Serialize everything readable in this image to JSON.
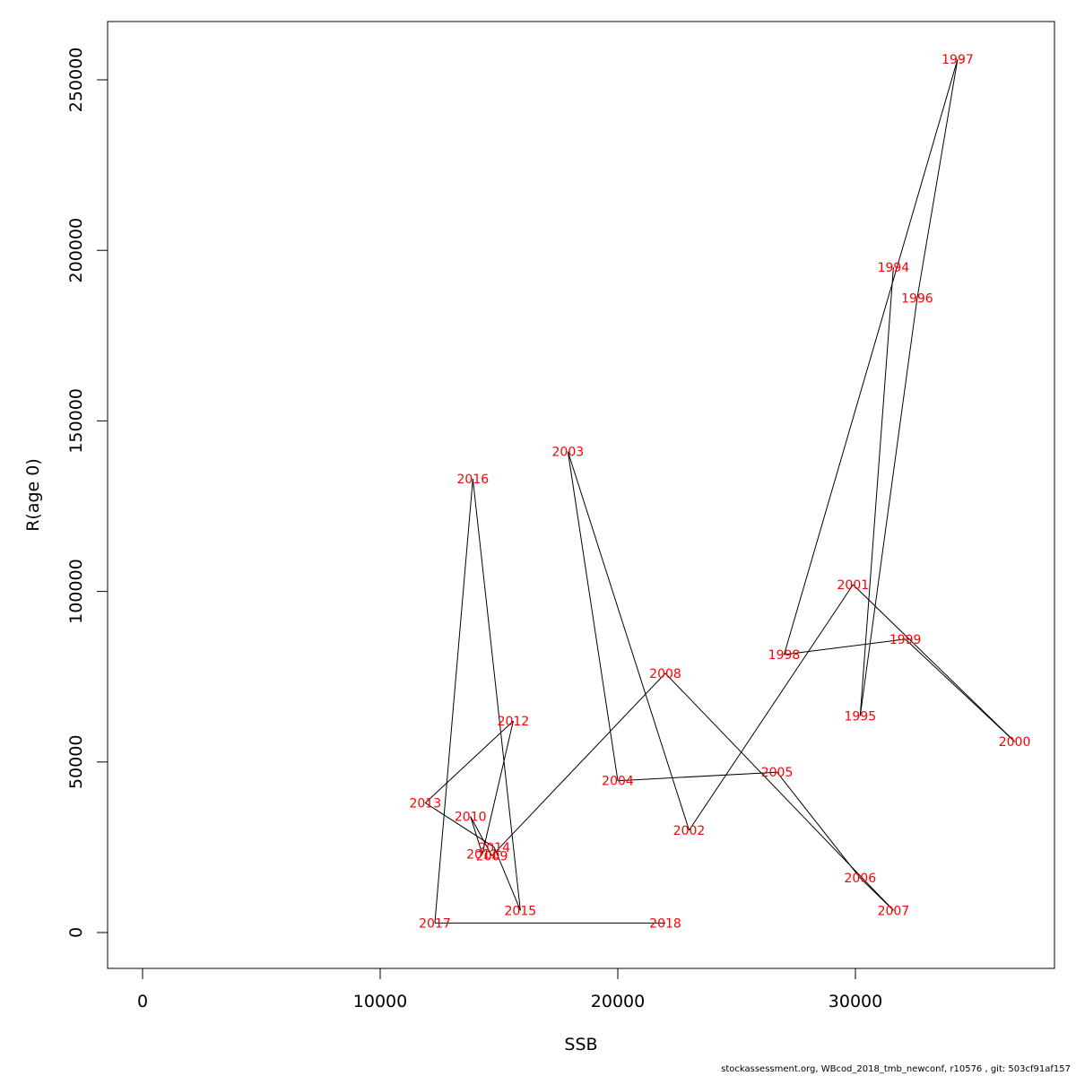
{
  "chart_data": {
    "type": "line",
    "title": "",
    "xlabel": "SSB",
    "ylabel": "R(age 0)",
    "xlim": [
      0,
      37000
    ],
    "ylim": [
      0,
      260000
    ],
    "xticks": [
      0,
      10000,
      20000,
      30000
    ],
    "yticks": [
      0,
      50000,
      100000,
      150000,
      200000,
      250000
    ],
    "grid": false,
    "line_color": "#000000",
    "label_color": "#ff0000",
    "points": [
      {
        "label": "1994",
        "x": 31600,
        "y": 195000
      },
      {
        "label": "1995",
        "x": 30200,
        "y": 63500
      },
      {
        "label": "1996",
        "x": 32600,
        "y": 186000
      },
      {
        "label": "1997",
        "x": 34300,
        "y": 256000
      },
      {
        "label": "1998",
        "x": 27000,
        "y": 81500
      },
      {
        "label": "1999",
        "x": 32100,
        "y": 86000
      },
      {
        "label": "2000",
        "x": 36700,
        "y": 56000
      },
      {
        "label": "2001",
        "x": 29900,
        "y": 102000
      },
      {
        "label": "2002",
        "x": 23000,
        "y": 30000
      },
      {
        "label": "2003",
        "x": 17900,
        "y": 141000
      },
      {
        "label": "2004",
        "x": 20000,
        "y": 44500
      },
      {
        "label": "2005",
        "x": 26700,
        "y": 47000
      },
      {
        "label": "2006",
        "x": 30200,
        "y": 16000
      },
      {
        "label": "2007",
        "x": 31600,
        "y": 6500
      },
      {
        "label": "2008",
        "x": 22000,
        "y": 76000
      },
      {
        "label": "2009",
        "x": 14700,
        "y": 22500
      },
      {
        "label": "2010",
        "x": 13800,
        "y": 34000
      },
      {
        "label": "2011",
        "x": 14300,
        "y": 23000
      },
      {
        "label": "2012",
        "x": 15600,
        "y": 62000
      },
      {
        "label": "2013",
        "x": 11900,
        "y": 38000
      },
      {
        "label": "2014",
        "x": 14800,
        "y": 25000
      },
      {
        "label": "2015",
        "x": 15900,
        "y": 6500
      },
      {
        "label": "2016",
        "x": 13900,
        "y": 133000
      },
      {
        "label": "2017",
        "x": 12300,
        "y": 2800
      },
      {
        "label": "2018",
        "x": 22000,
        "y": 2800
      }
    ]
  },
  "footer": "stockassessment.org, WBcod_2018_tmb_newconf, r10576 , git: 503cf91af157"
}
